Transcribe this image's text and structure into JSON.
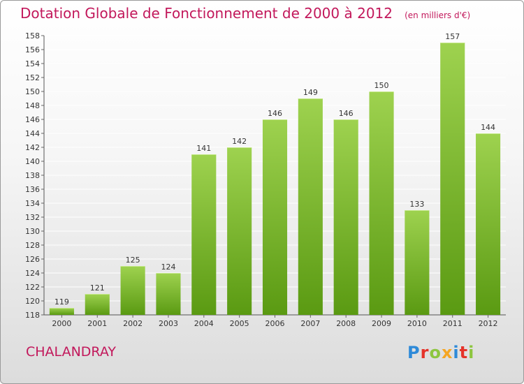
{
  "title": "Dotation Globale de Fonctionnement de 2000 à 2012",
  "subtitle": "(en milliers d'€)",
  "commune": "CHALANDRAY",
  "logo": {
    "letters": [
      "P",
      "r",
      "o",
      "x",
      "i",
      "t",
      "i"
    ],
    "colors": [
      "#2e8ad8",
      "#e5332a",
      "#8dc63f",
      "#f5a623",
      "#2e8ad8",
      "#e5332a",
      "#8dc63f"
    ]
  },
  "colors": {
    "title": "#c2185b",
    "bar_top": "#9ed24f",
    "bar_bottom": "#5a9a12",
    "gridline": "#ffffff"
  },
  "chart_data": {
    "type": "bar",
    "categories": [
      "2000",
      "2001",
      "2002",
      "2003",
      "2004",
      "2005",
      "2006",
      "2007",
      "2008",
      "2009",
      "2010",
      "2011",
      "2012"
    ],
    "values": [
      119,
      121,
      125,
      124,
      141,
      142,
      146,
      149,
      146,
      150,
      133,
      157,
      144
    ],
    "ylim": [
      118,
      158
    ],
    "yticks": [
      118,
      120,
      122,
      124,
      126,
      128,
      130,
      132,
      134,
      136,
      138,
      140,
      142,
      144,
      146,
      148,
      150,
      152,
      154,
      156,
      158
    ],
    "grid": true
  }
}
